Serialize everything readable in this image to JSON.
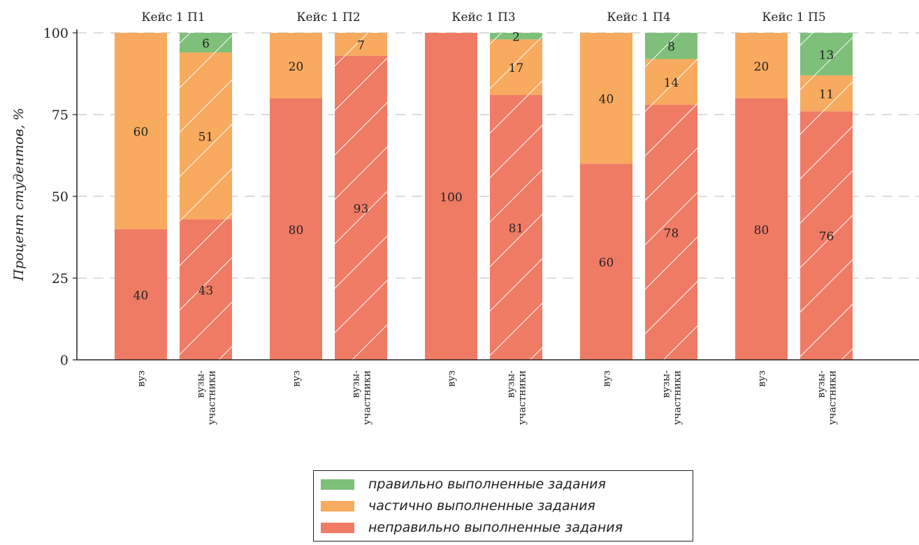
{
  "chart_data": {
    "type": "bar",
    "stacked": true,
    "ylabel": "Процент студентов, %",
    "ylim": [
      0,
      100
    ],
    "yticks": [
      0,
      25,
      50,
      75,
      100
    ],
    "grid": "horizontal-dashed",
    "legend_position": "bottom-center",
    "groups": [
      "Кейс 1 П1",
      "Кейс 1 П2",
      "Кейс 1 П3",
      "Кейс 1 П4",
      "Кейс 1 П5"
    ],
    "bar_labels": [
      "вуз",
      "вузы-участники"
    ],
    "series": [
      {
        "name": "неправильно выполненные задания",
        "color": "#f07b65",
        "values": [
          [
            40,
            43
          ],
          [
            80,
            93
          ],
          [
            100,
            81
          ],
          [
            60,
            78
          ],
          [
            80,
            76
          ]
        ]
      },
      {
        "name": "частично выполненные задания",
        "color": "#f8aa5e",
        "values": [
          [
            60,
            51
          ],
          [
            20,
            7
          ],
          [
            0,
            17
          ],
          [
            40,
            14
          ],
          [
            20,
            11
          ]
        ]
      },
      {
        "name": "правильно выполненные задания",
        "color": "#7ebf79",
        "values": [
          [
            0,
            6
          ],
          [
            0,
            0
          ],
          [
            0,
            2
          ],
          [
            0,
            8
          ],
          [
            0,
            13
          ]
        ]
      }
    ],
    "legend_order": [
      2,
      1,
      0
    ]
  }
}
